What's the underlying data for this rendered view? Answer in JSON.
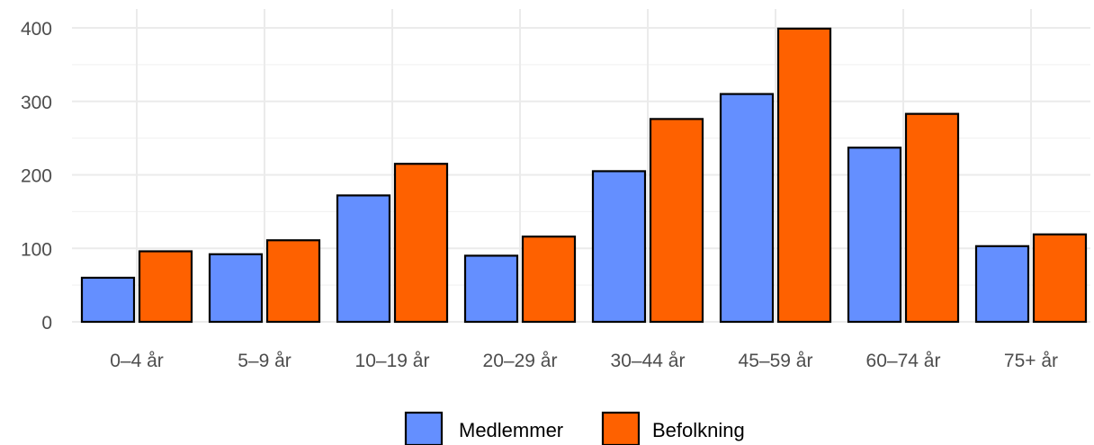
{
  "chart_data": {
    "type": "bar",
    "title": "",
    "xlabel": "",
    "ylabel": "",
    "categories": [
      "0–4 år",
      "5–9 år",
      "10–19 år",
      "20–29 år",
      "30–44 år",
      "45–59 år",
      "60–74 år",
      "75+ år"
    ],
    "series": [
      {
        "name": "Medlemmer",
        "color": "#648fff",
        "values": [
          60,
          92,
          172,
          90,
          205,
          310,
          237,
          103
        ]
      },
      {
        "name": "Befolkning",
        "color": "#fe6100",
        "values": [
          96,
          111,
          215,
          116,
          276,
          399,
          283,
          119
        ]
      }
    ],
    "ylim": [
      0,
      400
    ],
    "yticks": [
      0,
      100,
      200,
      300,
      400
    ],
    "grid": true,
    "legend_position": "bottom"
  }
}
